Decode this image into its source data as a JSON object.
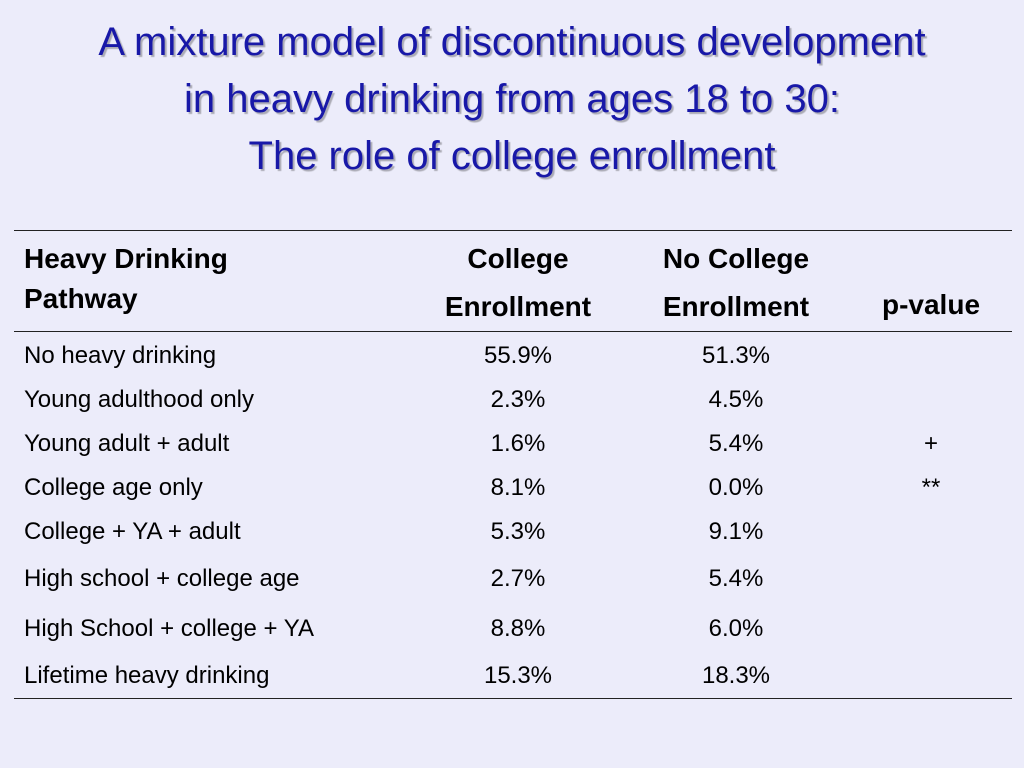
{
  "title": {
    "line1": "A mixture model of discontinuous development",
    "line2": "in heavy drinking from ages 18 to 30:",
    "line3": "The role of college enrollment"
  },
  "table": {
    "headers": {
      "pathway": [
        "Heavy Drinking",
        "Pathway"
      ],
      "college": [
        "College",
        "Enrollment"
      ],
      "no_college": [
        "No College",
        "Enrollment"
      ],
      "p_value": "p-value"
    },
    "rows": [
      {
        "pathway": "No heavy drinking",
        "college": "55.9%",
        "no_college": "51.3%",
        "p_value": ""
      },
      {
        "pathway": "Young adulthood only",
        "college": "2.3%",
        "no_college": "4.5%",
        "p_value": ""
      },
      {
        "pathway": "Young adult + adult",
        "college": "1.6%",
        "no_college": "5.4%",
        "p_value": "+"
      },
      {
        "pathway": "College age only",
        "college": "8.1%",
        "no_college": "0.0%",
        "p_value": "**"
      },
      {
        "pathway": "College + YA + adult",
        "college": "5.3%",
        "no_college": "9.1%",
        "p_value": ""
      },
      {
        "pathway": "High school + college age",
        "college": "2.7%",
        "no_college": "5.4%",
        "p_value": ""
      },
      {
        "pathway": "High School + college + YA",
        "college": "8.8%",
        "no_college": "6.0%",
        "p_value": ""
      },
      {
        "pathway": "Lifetime heavy drinking",
        "college": "15.3%",
        "no_college": "18.3%",
        "p_value": ""
      }
    ]
  },
  "colors": {
    "background": "#ececfa",
    "title": "#1818a8"
  }
}
